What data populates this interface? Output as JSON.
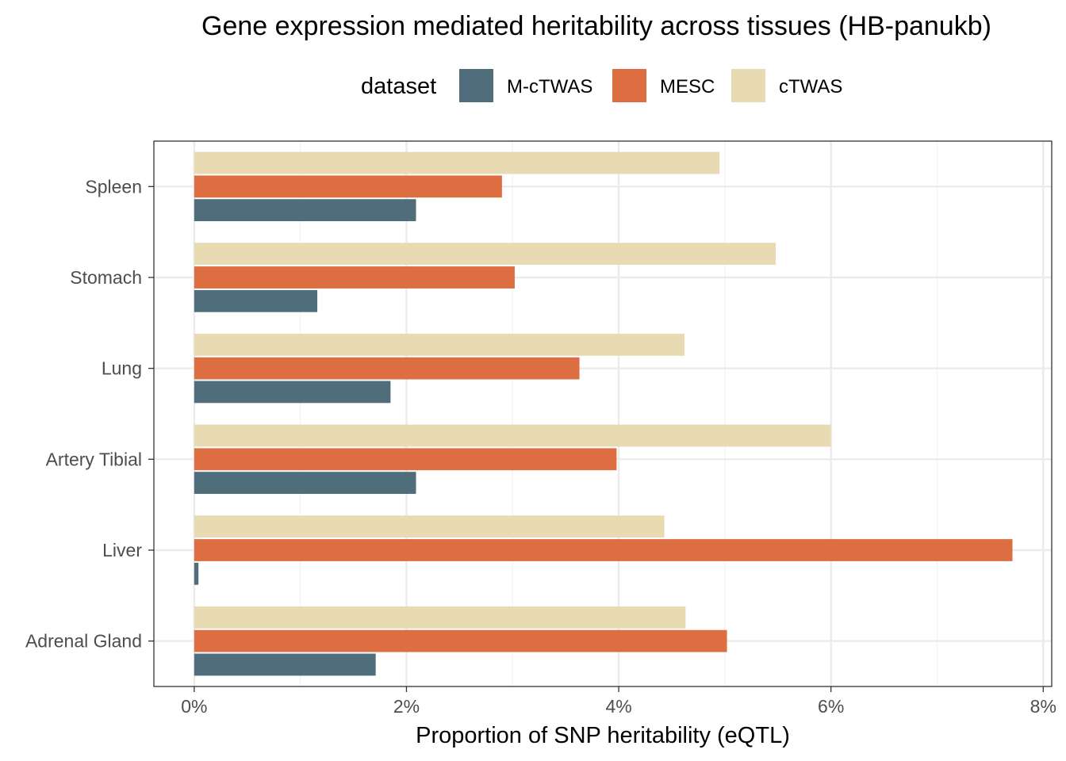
{
  "chart_data": {
    "type": "bar",
    "orientation": "horizontal",
    "title": "Gene expression mediated heritability across tissues (HB-panukb)",
    "xlabel": "Proportion of SNP heritability (eQTL)",
    "ylabel": "",
    "xlim": [
      -0.0038,
      0.0808
    ],
    "x_ticks": [
      0,
      0.02,
      0.04,
      0.06,
      0.08
    ],
    "x_tick_labels": [
      "0%",
      "2%",
      "4%",
      "6%",
      "8%"
    ],
    "grid": true,
    "legend": {
      "title": "dataset",
      "position": "top"
    },
    "categories": [
      "Spleen",
      "Stomach",
      "Lung",
      "Artery Tibial",
      "Liver",
      "Adrenal Gland"
    ],
    "series": [
      {
        "name": "M-cTWAS",
        "color": "#4f6d7a",
        "values": [
          0.0209,
          0.0116,
          0.0185,
          0.0209,
          0.0004,
          0.0171
        ]
      },
      {
        "name": "MESC",
        "color": "#dd6e42",
        "values": [
          0.029,
          0.0302,
          0.0363,
          0.0398,
          0.0771,
          0.0502
        ]
      },
      {
        "name": "cTWAS",
        "color": "#e8dab2",
        "values": [
          0.0495,
          0.0548,
          0.0462,
          0.06,
          0.0443,
          0.0463
        ]
      }
    ]
  }
}
